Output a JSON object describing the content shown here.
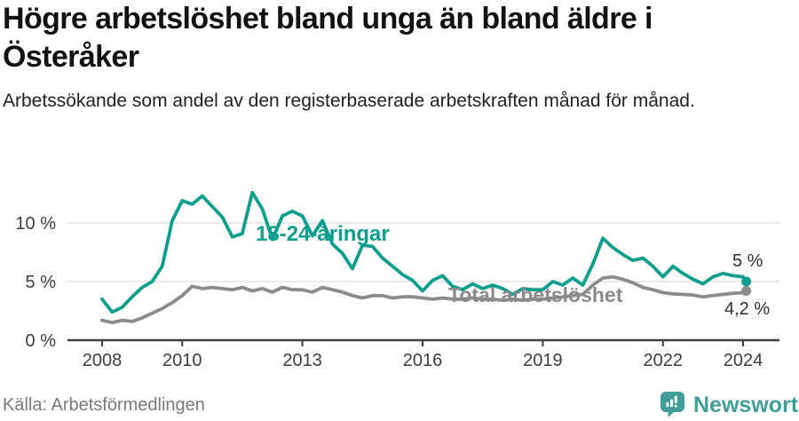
{
  "header": {
    "title": "Högre arbetslöshet bland unga än bland äldre i Österåker",
    "subtitle": "Arbetssökande som andel av den registerbaserade arbetskraften månad för månad."
  },
  "chart_data": {
    "type": "line",
    "title": "Högre arbetslöshet bland unga än bland äldre i Österåker",
    "subtitle": "Arbetssökande som andel av den registerbaserade arbetskraften månad för månad.",
    "xlabel": "",
    "ylabel": "",
    "x_domain": [
      2008,
      2024.08
    ],
    "ylim": [
      0,
      13.5
    ],
    "grid": "horizontal",
    "legend_position": "inline-labels",
    "yticks": [
      {
        "value": 0,
        "label": "0 %"
      },
      {
        "value": 5,
        "label": "5 %"
      },
      {
        "value": 10,
        "label": "10 %"
      }
    ],
    "xticks": [
      {
        "value": 2008,
        "label": "2008"
      },
      {
        "value": 2010,
        "label": "2010"
      },
      {
        "value": 2013,
        "label": "2013"
      },
      {
        "value": 2016,
        "label": "2016"
      },
      {
        "value": 2019,
        "label": "2019"
      },
      {
        "value": 2022,
        "label": "2022"
      },
      {
        "value": 2024,
        "label": "2024"
      }
    ],
    "x": [
      2008,
      2008.25,
      2008.5,
      2008.75,
      2009,
      2009.25,
      2009.5,
      2009.75,
      2010,
      2010.25,
      2010.5,
      2010.75,
      2011,
      2011.25,
      2011.5,
      2011.75,
      2012,
      2012.25,
      2012.5,
      2012.75,
      2013,
      2013.25,
      2013.5,
      2013.75,
      2014,
      2014.25,
      2014.5,
      2014.75,
      2015,
      2015.25,
      2015.5,
      2015.75,
      2016,
      2016.25,
      2016.5,
      2016.75,
      2017,
      2017.25,
      2017.5,
      2017.75,
      2018,
      2018.25,
      2018.5,
      2018.75,
      2019,
      2019.25,
      2019.5,
      2019.75,
      2020,
      2020.25,
      2020.5,
      2020.75,
      2021,
      2021.25,
      2021.5,
      2021.75,
      2022,
      2022.25,
      2022.5,
      2022.75,
      2023,
      2023.25,
      2023.5,
      2023.75,
      2024,
      2024.08
    ],
    "series": [
      {
        "name": "18-24-åringar",
        "color": "#0d9e8e",
        "end_value": 5.0,
        "end_label": "5 %",
        "values": [
          3.5,
          2.4,
          2.8,
          3.7,
          4.5,
          5.0,
          6.3,
          10.2,
          11.9,
          11.6,
          12.3,
          11.4,
          10.5,
          8.8,
          9.1,
          12.6,
          11.2,
          8.6,
          10.6,
          11.0,
          10.6,
          8.9,
          10.2,
          8.2,
          7.4,
          6.1,
          8.1,
          8.0,
          7.0,
          6.3,
          5.6,
          5.1,
          4.2,
          5.1,
          5.5,
          4.6,
          4.3,
          4.8,
          4.4,
          4.7,
          4.4,
          3.9,
          4.4,
          4.3,
          4.3,
          5.0,
          4.7,
          5.3,
          4.7,
          6.5,
          8.7,
          7.9,
          7.3,
          6.8,
          7.0,
          6.3,
          5.4,
          6.3,
          5.7,
          5.2,
          4.8,
          5.4,
          5.7,
          5.5,
          5.4,
          5.0
        ]
      },
      {
        "name": "Total arbetslöshet",
        "color": "#8b8b8b",
        "end_value": 4.2,
        "end_label": "4,2 %",
        "values": [
          1.7,
          1.5,
          1.7,
          1.6,
          1.9,
          2.3,
          2.7,
          3.2,
          3.8,
          4.6,
          4.4,
          4.5,
          4.4,
          4.3,
          4.5,
          4.2,
          4.4,
          4.1,
          4.5,
          4.3,
          4.3,
          4.1,
          4.5,
          4.3,
          4.1,
          3.8,
          3.6,
          3.8,
          3.8,
          3.6,
          3.7,
          3.7,
          3.6,
          3.5,
          3.6,
          3.5,
          3.5,
          3.6,
          3.5,
          3.5,
          3.4,
          3.5,
          3.4,
          3.5,
          3.5,
          3.6,
          3.7,
          3.8,
          3.9,
          4.7,
          5.3,
          5.4,
          5.2,
          4.9,
          4.5,
          4.3,
          4.05,
          3.95,
          3.9,
          3.85,
          3.7,
          3.8,
          3.9,
          4.0,
          4.05,
          4.2
        ]
      }
    ],
    "annotations": [
      {
        "text": "5 %",
        "series": "18-24-åringar"
      },
      {
        "text": "4,2 %",
        "series": "Total arbetslöshet"
      }
    ]
  },
  "footer": {
    "source": "Källa: Arbetsförmedlingen",
    "brand": "Newsworthy"
  },
  "colors": {
    "accent_teal": "#0d9e8e",
    "series_gray": "#8b8b8b",
    "grid": "#dcdcdc",
    "axis": "#3f3f3f",
    "tick_text": "#3d3d3d",
    "title_text": "#121212",
    "source_text": "#7a7a7a",
    "logo_teal": "#3f9e97"
  }
}
